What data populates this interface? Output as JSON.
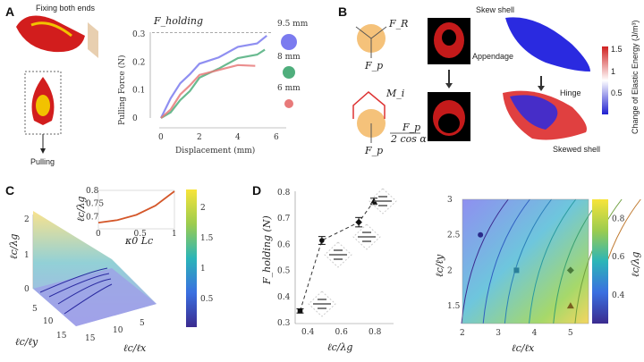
{
  "panels": {
    "a": "A",
    "b": "B",
    "c": "C",
    "d": "D"
  },
  "panel_a": {
    "fixing_label": "Fixing both ends",
    "pulling_label": "Pulling"
  },
  "panel_b": {
    "skew_shell": "Skew shell",
    "appendage": "Appendage",
    "hinge": "Hinge",
    "skewed_shell": "Skewed shell",
    "force_r": "F_R",
    "force_p": "F_p",
    "moment": "M_i",
    "formula_num": "F_p",
    "formula_den": "2 cos α",
    "colorbar_label": "Change of Elastic Energy (J/m³)",
    "colorbar_ticks": [
      "1.5",
      "1",
      "0.5"
    ]
  },
  "panel_c": {
    "z_label": "ℓc/λg",
    "y_label": "ℓc/ℓy",
    "x_label": "ℓc/ℓx",
    "z_ticks": [
      "0",
      "1",
      "2"
    ],
    "y_ticks": [
      "5",
      "10",
      "15"
    ],
    "x_ticks": [
      "5",
      "10",
      "15"
    ],
    "colorbar_ticks": [
      "2",
      "1.5",
      "1",
      "0.5"
    ]
  },
  "chart_data": [
    {
      "type": "line",
      "panel": "A",
      "xlabel": "Displacement (mm)",
      "ylabel": "Pulling Force (N)",
      "xlim": [
        0,
        6
      ],
      "ylim": [
        0,
        0.3
      ],
      "xticks": [
        "0",
        "2",
        "4",
        "6"
      ],
      "yticks": [
        "0",
        "0.1",
        "0.2",
        "0.3"
      ],
      "annotation": "F_holding",
      "holding_line": 0.305,
      "series": [
        {
          "name": "9.5 mm",
          "color": "#7b7bef",
          "x": [
            0,
            0.5,
            1,
            1.5,
            2,
            3,
            4,
            5,
            5.5
          ],
          "y": [
            0,
            0.07,
            0.12,
            0.16,
            0.19,
            0.22,
            0.25,
            0.27,
            0.29
          ]
        },
        {
          "name": "8 mm",
          "color": "#4fae7c",
          "x": [
            0,
            0.5,
            1,
            1.5,
            2,
            3,
            4,
            5,
            5.4
          ],
          "y": [
            0,
            0.02,
            0.06,
            0.1,
            0.14,
            0.18,
            0.21,
            0.23,
            0.24
          ]
        },
        {
          "name": "6 mm",
          "color": "#e87a7a",
          "x": [
            0,
            0.5,
            1,
            1.5,
            2,
            3,
            4,
            4.9
          ],
          "y": [
            0,
            0.03,
            0.08,
            0.12,
            0.15,
            0.175,
            0.185,
            0.19
          ]
        }
      ]
    },
    {
      "type": "line",
      "panel": "C-inset",
      "xlabel": "κ0 Lc",
      "ylabel": "ℓc/λg",
      "xlim": [
        0,
        1
      ],
      "ylim": [
        0.66,
        0.8
      ],
      "xticks": [
        "0",
        "0.5",
        "1"
      ],
      "yticks": [
        "0.7",
        "0.75",
        "0.8"
      ],
      "x": [
        0,
        0.25,
        0.5,
        0.75,
        1
      ],
      "y": [
        0.68,
        0.69,
        0.71,
        0.745,
        0.8
      ]
    },
    {
      "type": "scatter",
      "panel": "D-left",
      "xlabel": "ℓc/λg",
      "ylabel": "F_holding (N)",
      "xlim": [
        0.3,
        0.9
      ],
      "ylim": [
        0.3,
        0.8
      ],
      "xticks": [
        "0.4",
        "0.6",
        "0.8"
      ],
      "yticks": [
        "0.3",
        "0.4",
        "0.5",
        "0.6",
        "0.7",
        "0.8"
      ],
      "points": [
        {
          "x": 0.36,
          "y": 0.345,
          "err": 0.008,
          "marker": "square"
        },
        {
          "x": 0.49,
          "y": 0.615,
          "err": 0.015,
          "marker": "circle"
        },
        {
          "x": 0.71,
          "y": 0.685,
          "err": 0.018,
          "marker": "diamond"
        },
        {
          "x": 0.8,
          "y": 0.765,
          "err": 0.012,
          "marker": "triangle"
        }
      ]
    },
    {
      "type": "heatmap",
      "panel": "D-right",
      "xlabel": "ℓc/ℓx",
      "ylabel": "ℓc/ℓy",
      "colorbar_label": "ℓc/λg",
      "xlim": [
        2,
        5.5
      ],
      "ylim": [
        1.25,
        3
      ],
      "xticks": [
        "2",
        "3",
        "4",
        "5"
      ],
      "yticks": [
        "1.5",
        "2",
        "2.5",
        "3"
      ],
      "colorbar_ticks": [
        "0.4",
        "0.6",
        "0.8"
      ],
      "crange": [
        0.25,
        0.9
      ],
      "points": [
        {
          "x": 2.5,
          "y": 2.5,
          "marker": "circle"
        },
        {
          "x": 3.5,
          "y": 2,
          "marker": "square"
        },
        {
          "x": 5,
          "y": 2,
          "marker": "diamond"
        },
        {
          "x": 5,
          "y": 1.5,
          "marker": "triangle"
        }
      ]
    }
  ]
}
